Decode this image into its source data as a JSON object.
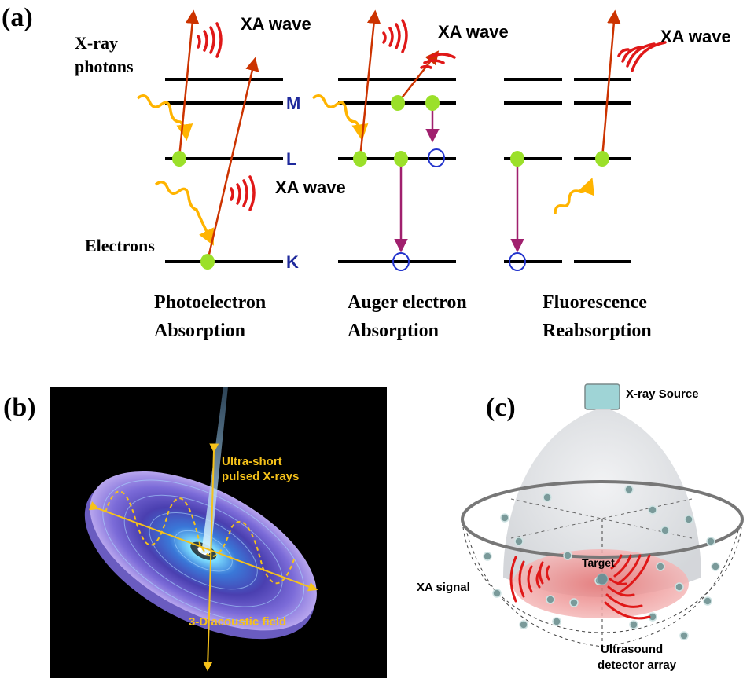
{
  "panels": {
    "a": {
      "label": "(a)",
      "xray_photons": [
        "X-ray",
        "photons"
      ],
      "electrons": "Electrons",
      "xa_wave": "XA wave",
      "levels": {
        "m": "M",
        "l": "L",
        "k": "K"
      },
      "processes": [
        {
          "line1": "Photoelectron",
          "line2": "Absorption"
        },
        {
          "line1": "Auger electron",
          "line2": "Absorption"
        },
        {
          "line1": "Fluorescence",
          "line2": "Reabsorption"
        }
      ]
    },
    "b": {
      "label": "(b)",
      "xrays": [
        "Ultra-short",
        "pulsed X-rays"
      ],
      "field": "3-D acoustic  field"
    },
    "c": {
      "label": "(c)",
      "source": "X-ray Source",
      "target": "Target",
      "signal": "XA signal",
      "detector": [
        "Ultrasound",
        "detector array"
      ]
    }
  },
  "colors": {
    "level_line": "#000000",
    "level_label": "#1f2a9c",
    "electron": "#9be02a",
    "photon_arrow": "#cc3300",
    "xray_wave": "#ffb400",
    "xa_wave": "#e01818",
    "transition": "#a0206e",
    "hole": "#2233cc",
    "xray_yellow": "#f6c21a"
  }
}
